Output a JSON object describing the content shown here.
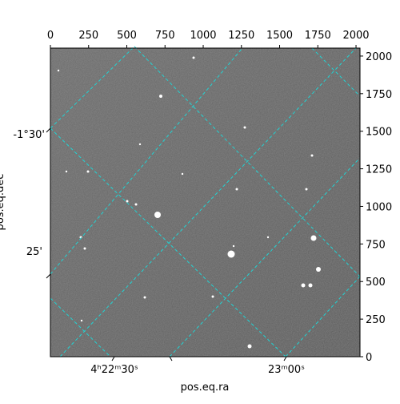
{
  "chart_data": {
    "type": "image",
    "xlabel": "pos.eq.ra",
    "ylabel": "pos.eq.dec",
    "ra_tick_labels": [
      "4ʰ22ᵐ30ˢ",
      "23ᵐ00ˢ"
    ],
    "dec_tick_labels": [
      "-1°30'",
      "25'"
    ],
    "xlim": [
      0,
      2026
    ],
    "xticks": [
      0,
      250,
      500,
      750,
      1000,
      1250,
      1500,
      1750,
      2000
    ],
    "ylim": [
      0,
      2053
    ],
    "yticks": [
      0,
      250,
      500,
      750,
      1000,
      1250,
      1500,
      1750,
      2000
    ]
  }
}
